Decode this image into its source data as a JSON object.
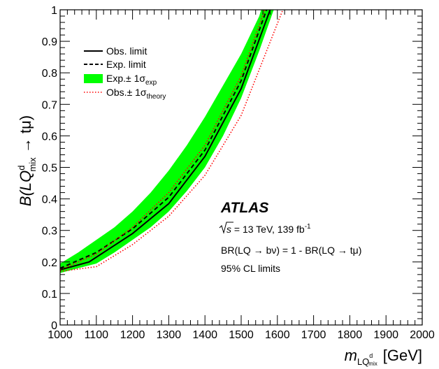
{
  "chart_data": {
    "type": "line",
    "xlim": [
      1000,
      2000
    ],
    "ylim": [
      0,
      1
    ],
    "x_ticks": [
      "1000",
      "1100",
      "1200",
      "1300",
      "1400",
      "1500",
      "1600",
      "1700",
      "1800",
      "1900",
      "2000"
    ],
    "y_ticks": [
      "0",
      "0.1",
      "0.2",
      "0.3",
      "0.4",
      "0.5",
      "0.6",
      "0.7",
      "0.8",
      "0.9",
      "1"
    ],
    "xlabel": {
      "main": "m",
      "sub": "LQ",
      "subsup": "d",
      "subsub": "mix",
      "unit": "[GeV]"
    },
    "ylabel": {
      "main": "B(LQ",
      "sup": "d",
      "sub": "mix",
      "tail": " → tμ)"
    },
    "legend_placement": "top-left",
    "legend": [
      {
        "label": "Obs. limit",
        "style": "solid"
      },
      {
        "label": "Exp. limit",
        "style": "dashed"
      },
      {
        "label": "Exp.± 1σ",
        "sub": "exp",
        "style": "band"
      },
      {
        "label": "Obs.± 1σ",
        "sub": "theory",
        "style": "dotted"
      }
    ],
    "annotations": {
      "experiment": "ATLAS",
      "energy_prefix": "s",
      "energy": " = 13 TeV, 139 fb",
      "energy_sup": "-1",
      "br_text": "BR(LQ → bν) = 1 - BR(LQ → tμ)",
      "cl_text": "95% CL limits"
    },
    "colors": {
      "band": "#00ff00",
      "theory": "#ff0000",
      "lines": "#000000"
    },
    "series": [
      {
        "name": "Obs. limit",
        "style": "solid",
        "x": [
          1000,
          1080,
          1200,
          1300,
          1400,
          1500,
          1580
        ],
        "y": [
          0.175,
          0.2,
          0.29,
          0.385,
          0.535,
          0.75,
          1.0
        ]
      },
      {
        "name": "Exp. limit",
        "style": "dashed",
        "x": [
          1000,
          1100,
          1200,
          1300,
          1400,
          1500,
          1570
        ],
        "y": [
          0.18,
          0.23,
          0.305,
          0.405,
          0.555,
          0.775,
          1.0
        ]
      },
      {
        "name": "Exp.± 1σexp",
        "style": "band",
        "x": [
          1000,
          1050,
          1100,
          1150,
          1200,
          1250,
          1300,
          1350,
          1400,
          1450,
          1500,
          1550,
          1590
        ],
        "lower": [
          0.165,
          0.18,
          0.195,
          0.23,
          0.27,
          0.31,
          0.36,
          0.425,
          0.5,
          0.6,
          0.72,
          0.87,
          1.0
        ],
        "upper": [
          0.195,
          0.23,
          0.27,
          0.31,
          0.36,
          0.42,
          0.49,
          0.57,
          0.66,
          0.76,
          0.86,
          0.98,
          1.0
        ],
        "upper_end_x": 1555
      },
      {
        "name": "Obs.± 1σtheory (up)",
        "style": "dotted",
        "x": [
          1000,
          1100,
          1200,
          1300,
          1400,
          1500,
          1565
        ],
        "y": [
          0.175,
          0.225,
          0.31,
          0.42,
          0.57,
          0.79,
          1.0
        ]
      },
      {
        "name": "Obs.± 1σtheory (down)",
        "style": "dotted",
        "x": [
          1000,
          1100,
          1200,
          1300,
          1400,
          1500,
          1615
        ],
        "y": [
          0.17,
          0.185,
          0.255,
          0.345,
          0.475,
          0.665,
          1.0
        ]
      }
    ]
  }
}
